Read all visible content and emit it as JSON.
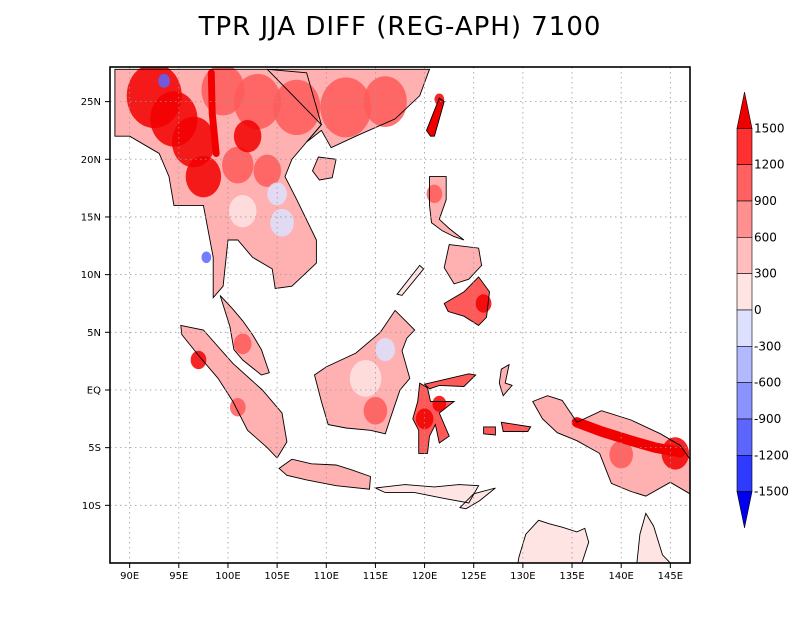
{
  "title": "TPR JJA DIFF (REG-APH) 7100",
  "map": {
    "lon_range": [
      88,
      147
    ],
    "lat_range": [
      -15,
      28
    ],
    "x_ticks": [
      {
        "value": 90,
        "label": "90E"
      },
      {
        "value": 95,
        "label": "95E"
      },
      {
        "value": 100,
        "label": "100E"
      },
      {
        "value": 105,
        "label": "105E"
      },
      {
        "value": 110,
        "label": "110E"
      },
      {
        "value": 115,
        "label": "115E"
      },
      {
        "value": 120,
        "label": "120E"
      },
      {
        "value": 125,
        "label": "125E"
      },
      {
        "value": 130,
        "label": "130E"
      },
      {
        "value": 135,
        "label": "135E"
      },
      {
        "value": 140,
        "label": "140E"
      },
      {
        "value": 145,
        "label": "145E"
      }
    ],
    "y_ticks": [
      {
        "value": 25,
        "label": "25N"
      },
      {
        "value": 20,
        "label": "20N"
      },
      {
        "value": 15,
        "label": "15N"
      },
      {
        "value": 10,
        "label": "10N"
      },
      {
        "value": 5,
        "label": "5N"
      },
      {
        "value": 0,
        "label": "EQ"
      },
      {
        "value": -5,
        "label": "5S"
      },
      {
        "value": -10,
        "label": "10S"
      }
    ],
    "grid": "dotted"
  },
  "colorbar": {
    "levels": [
      "1500",
      "1200",
      "900",
      "600",
      "300",
      "0",
      "-300",
      "-600",
      "-900",
      "-1200",
      "-1500"
    ],
    "colors": [
      "#ee0000",
      "#ff3030",
      "#ff6060",
      "#ff9090",
      "#ffbdbd",
      "#ffe4e4",
      "#dde1ff",
      "#b3b9ff",
      "#8b93ff",
      "#5c66ff",
      "#2f3aff",
      "#0000ee"
    ]
  },
  "land_colors": {
    "strong_pos": "#f20000",
    "pos": "#ff5a5a",
    "light_pos": "#ffb0b0",
    "faint_pos": "#ffe4e4",
    "neg": "#dde1ff",
    "strong_neg": "#5c66ff"
  },
  "regions": [
    {
      "name": "indochina-mainland",
      "fill": "light_pos",
      "pts": [
        [
          88.5,
          27.8
        ],
        [
          99,
          27.8
        ],
        [
          104,
          27.8
        ],
        [
          108,
          27.5
        ],
        [
          109.5,
          23
        ],
        [
          108,
          21.5
        ],
        [
          106.5,
          20
        ],
        [
          105.8,
          18.5
        ],
        [
          107,
          16.5
        ],
        [
          109,
          13
        ],
        [
          109,
          11
        ],
        [
          106.5,
          9
        ],
        [
          104.8,
          8.8
        ],
        [
          104.5,
          10.5
        ],
        [
          102.5,
          11.5
        ],
        [
          101,
          13
        ],
        [
          100,
          13
        ],
        [
          99.5,
          9
        ],
        [
          98.5,
          8
        ],
        [
          98.5,
          11.5
        ],
        [
          97.5,
          16
        ],
        [
          94.5,
          16
        ],
        [
          94,
          18.5
        ],
        [
          93,
          20.5
        ],
        [
          92,
          21
        ],
        [
          90,
          22
        ],
        [
          88.5,
          22
        ]
      ]
    },
    {
      "name": "south-china",
      "fill": "light_pos",
      "pts": [
        [
          104,
          27.8
        ],
        [
          120.5,
          27.8
        ],
        [
          119.5,
          25.5
        ],
        [
          117,
          23.5
        ],
        [
          113,
          22
        ],
        [
          110.5,
          21
        ],
        [
          109.5,
          22.5
        ],
        [
          108,
          21.5
        ],
        [
          109.5,
          23
        ]
      ]
    },
    {
      "name": "malay-peninsula",
      "fill": "light_pos",
      "pts": [
        [
          99.2,
          8.2
        ],
        [
          100.5,
          7
        ],
        [
          101.5,
          6
        ],
        [
          102.5,
          4.8
        ],
        [
          103.4,
          3.5
        ],
        [
          104.2,
          1.5
        ],
        [
          103.4,
          1.3
        ],
        [
          101.5,
          2.6
        ],
        [
          100.6,
          3.5
        ],
        [
          100.2,
          5.5
        ]
      ]
    },
    {
      "name": "sumatra",
      "fill": "light_pos",
      "pts": [
        [
          95.2,
          5.6
        ],
        [
          97.5,
          5.2
        ],
        [
          100.5,
          2.3
        ],
        [
          103.5,
          0
        ],
        [
          105.5,
          -2
        ],
        [
          106,
          -4.5
        ],
        [
          105,
          -5.9
        ],
        [
          104,
          -5
        ],
        [
          102,
          -3.5
        ],
        [
          100.5,
          -1
        ],
        [
          99,
          1
        ],
        [
          97,
          3
        ],
        [
          95.3,
          4.8
        ]
      ]
    },
    {
      "name": "borneo",
      "fill": "light_pos",
      "pts": [
        [
          109.5,
          -1
        ],
        [
          108.8,
          1.3
        ],
        [
          110,
          2
        ],
        [
          113,
          3.2
        ],
        [
          115.5,
          5
        ],
        [
          117,
          6.9
        ],
        [
          119,
          5.2
        ],
        [
          118.2,
          4.5
        ],
        [
          117.7,
          3.4
        ],
        [
          118.5,
          1
        ],
        [
          117.5,
          0
        ],
        [
          116.5,
          -2.5
        ],
        [
          116,
          -3.8
        ],
        [
          114.5,
          -3.5
        ],
        [
          112,
          -3.3
        ],
        [
          110.2,
          -3
        ]
      ]
    },
    {
      "name": "java",
      "fill": "light_pos",
      "pts": [
        [
          105.2,
          -6.8
        ],
        [
          106.5,
          -6
        ],
        [
          108.5,
          -6.4
        ],
        [
          111,
          -6.5
        ],
        [
          112.5,
          -6.9
        ],
        [
          114.5,
          -7.5
        ],
        [
          114.4,
          -8.6
        ],
        [
          111,
          -8.3
        ],
        [
          108,
          -7.8
        ],
        [
          106,
          -7.4
        ]
      ]
    },
    {
      "name": "lesser-sunda",
      "fill": "faint_pos",
      "pts": [
        [
          115,
          -8.5
        ],
        [
          118,
          -8.2
        ],
        [
          121,
          -8.4
        ],
        [
          123.5,
          -8.2
        ],
        [
          125.5,
          -8.3
        ],
        [
          124.5,
          -9.8
        ],
        [
          122,
          -9.4
        ],
        [
          119,
          -8.9
        ],
        [
          116,
          -8.9
        ]
      ]
    },
    {
      "name": "timor",
      "fill": "faint_pos",
      "pts": [
        [
          123.6,
          -10.2
        ],
        [
          125,
          -9
        ],
        [
          127.2,
          -8.5
        ],
        [
          125.6,
          -9.6
        ],
        [
          124.2,
          -10.3
        ]
      ]
    },
    {
      "name": "sulawesi-north",
      "fill": "pos",
      "pts": [
        [
          120,
          0.5
        ],
        [
          122.5,
          1
        ],
        [
          124.5,
          1.4
        ],
        [
          125.2,
          1.3
        ],
        [
          124,
          0.3
        ],
        [
          121.5,
          0.4
        ],
        [
          120.5,
          0.1
        ]
      ]
    },
    {
      "name": "sulawesi-body",
      "fill": "pos",
      "pts": [
        [
          119.5,
          0.6
        ],
        [
          120.3,
          0.2
        ],
        [
          120.6,
          -1
        ],
        [
          121.8,
          -1
        ],
        [
          123,
          -1
        ],
        [
          121.5,
          -2
        ],
        [
          122.5,
          -4
        ],
        [
          121.5,
          -4.6
        ],
        [
          121.1,
          -3
        ],
        [
          120.5,
          -4
        ],
        [
          120.3,
          -5.5
        ],
        [
          119.4,
          -5.5
        ],
        [
          119.4,
          -3.5
        ],
        [
          118.8,
          -2.5
        ],
        [
          119.3,
          -1
        ]
      ]
    },
    {
      "name": "luzon",
      "fill": "light_pos",
      "pts": [
        [
          120.5,
          18.5
        ],
        [
          122.2,
          18.5
        ],
        [
          122.2,
          16.5
        ],
        [
          121.5,
          14.8
        ],
        [
          122.5,
          14
        ],
        [
          124,
          13
        ],
        [
          123,
          13.3
        ],
        [
          121.8,
          13.8
        ],
        [
          120.7,
          14.5
        ],
        [
          120.5,
          16
        ]
      ]
    },
    {
      "name": "visayas",
      "fill": "light_pos",
      "pts": [
        [
          122.5,
          12.6
        ],
        [
          125.5,
          12.3
        ],
        [
          125.8,
          10.8
        ],
        [
          124.5,
          9.6
        ],
        [
          123,
          9.2
        ],
        [
          122,
          10.6
        ]
      ]
    },
    {
      "name": "mindanao",
      "fill": "pos",
      "pts": [
        [
          122,
          7.5
        ],
        [
          124,
          8.5
        ],
        [
          125.5,
          9.8
        ],
        [
          126.6,
          8.5
        ],
        [
          126.3,
          6.3
        ],
        [
          125.5,
          5.6
        ],
        [
          124,
          6.4
        ],
        [
          122.4,
          6.8
        ]
      ]
    },
    {
      "name": "palawan",
      "fill": "faint_pos",
      "pts": [
        [
          117.2,
          8.3
        ],
        [
          119.5,
          10.8
        ],
        [
          119.9,
          10.5
        ],
        [
          117.7,
          8.2
        ]
      ]
    },
    {
      "name": "hainan",
      "fill": "light_pos",
      "pts": [
        [
          108.6,
          19
        ],
        [
          109.2,
          20.2
        ],
        [
          111,
          20
        ],
        [
          110.6,
          18.4
        ],
        [
          109.3,
          18.2
        ]
      ]
    },
    {
      "name": "taiwan",
      "fill": "strong_pos",
      "pts": [
        [
          120.2,
          22.5
        ],
        [
          121.5,
          25.3
        ],
        [
          122,
          25
        ],
        [
          121,
          22
        ],
        [
          120.6,
          22
        ]
      ]
    },
    {
      "name": "halmahera",
      "fill": "light_pos",
      "pts": [
        [
          127.8,
          1.8
        ],
        [
          128.6,
          2.2
        ],
        [
          128.2,
          0.6
        ],
        [
          128.9,
          0.4
        ],
        [
          128,
          -0.5
        ],
        [
          127.6,
          0.6
        ]
      ]
    },
    {
      "name": "seram",
      "fill": "pos",
      "pts": [
        [
          127.8,
          -2.8
        ],
        [
          130.8,
          -3.2
        ],
        [
          130.5,
          -3.6
        ],
        [
          128,
          -3.6
        ]
      ]
    },
    {
      "name": "buru",
      "fill": "pos",
      "pts": [
        [
          126,
          -3.2
        ],
        [
          127.2,
          -3.2
        ],
        [
          127.2,
          -3.9
        ],
        [
          126,
          -3.8
        ]
      ]
    },
    {
      "name": "new-guinea",
      "fill": "light_pos",
      "pts": [
        [
          131,
          -1
        ],
        [
          132.5,
          -0.5
        ],
        [
          134,
          -0.9
        ],
        [
          135.5,
          -2.8
        ],
        [
          138,
          -1.8
        ],
        [
          141,
          -2.6
        ],
        [
          144,
          -3.8
        ],
        [
          146,
          -4.8
        ],
        [
          147,
          -6
        ],
        [
          147,
          -9
        ],
        [
          145,
          -8
        ],
        [
          142.5,
          -9.2
        ],
        [
          141,
          -8.8
        ],
        [
          139,
          -8.1
        ],
        [
          137.8,
          -5.5
        ],
        [
          135.5,
          -4.4
        ],
        [
          133.5,
          -3.7
        ],
        [
          132,
          -2.5
        ]
      ]
    },
    {
      "name": "australia-north",
      "fill": "faint_pos",
      "pts": [
        [
          129.5,
          -15
        ],
        [
          129.6,
          -14.5
        ],
        [
          130.3,
          -12.5
        ],
        [
          131.6,
          -11.3
        ],
        [
          132.7,
          -11.6
        ],
        [
          134,
          -11.9
        ],
        [
          135.5,
          -12.3
        ],
        [
          136.3,
          -12
        ],
        [
          136.7,
          -13.2
        ],
        [
          136,
          -15
        ]
      ]
    },
    {
      "name": "cape-york",
      "fill": "faint_pos",
      "pts": [
        [
          141.6,
          -15
        ],
        [
          141.9,
          -12.5
        ],
        [
          142.5,
          -10.7
        ],
        [
          143.3,
          -11.8
        ],
        [
          144.2,
          -14.3
        ],
        [
          145,
          -15
        ]
      ]
    }
  ],
  "hotspots": [
    {
      "lon": 92.5,
      "lat": 25.5,
      "r": 2.8,
      "fill": "strong_pos"
    },
    {
      "lon": 94.5,
      "lat": 23.5,
      "r": 2.4,
      "fill": "strong_pos"
    },
    {
      "lon": 96.5,
      "lat": 21.5,
      "r": 2.2,
      "fill": "strong_pos"
    },
    {
      "lon": 97.5,
      "lat": 18.5,
      "r": 1.8,
      "fill": "strong_pos"
    },
    {
      "lon": 99.5,
      "lat": 26,
      "r": 2.2,
      "fill": "pos"
    },
    {
      "lon": 103,
      "lat": 25,
      "r": 2.4,
      "fill": "pos"
    },
    {
      "lon": 107,
      "lat": 24.5,
      "r": 2.4,
      "fill": "pos"
    },
    {
      "lon": 112,
      "lat": 24.5,
      "r": 2.6,
      "fill": "pos"
    },
    {
      "lon": 116,
      "lat": 25,
      "r": 2.2,
      "fill": "pos"
    },
    {
      "lon": 101,
      "lat": 19.5,
      "r": 1.6,
      "fill": "pos"
    },
    {
      "lon": 104,
      "lat": 19,
      "r": 1.4,
      "fill": "pos"
    },
    {
      "lon": 102,
      "lat": 22,
      "r": 1.4,
      "fill": "strong_pos"
    },
    {
      "lon": 101.5,
      "lat": 15.5,
      "r": 1.4,
      "fill": "faint_pos"
    },
    {
      "lon": 105.5,
      "lat": 14.5,
      "r": 1.2,
      "fill": "neg"
    },
    {
      "lon": 105,
      "lat": 17,
      "r": 1.0,
      "fill": "neg"
    },
    {
      "lon": 93.5,
      "lat": 26.8,
      "r": 0.6,
      "fill": "strong_neg"
    },
    {
      "lon": 97.8,
      "lat": 11.5,
      "r": 0.5,
      "fill": "strong_neg"
    },
    {
      "lon": 101.5,
      "lat": 4,
      "r": 0.9,
      "fill": "pos"
    },
    {
      "lon": 97,
      "lat": 2.6,
      "r": 0.8,
      "fill": "strong_pos"
    },
    {
      "lon": 101,
      "lat": -1.5,
      "r": 0.8,
      "fill": "pos"
    },
    {
      "lon": 114,
      "lat": 1,
      "r": 1.6,
      "fill": "faint_pos"
    },
    {
      "lon": 115,
      "lat": -1.8,
      "r": 1.2,
      "fill": "pos"
    },
    {
      "lon": 116,
      "lat": 3.5,
      "r": 1.0,
      "fill": "neg"
    },
    {
      "lon": 120,
      "lat": -2.5,
      "r": 0.9,
      "fill": "strong_pos"
    },
    {
      "lon": 121.5,
      "lat": -1.2,
      "r": 0.7,
      "fill": "strong_pos"
    },
    {
      "lon": 126,
      "lat": 7.5,
      "r": 0.8,
      "fill": "strong_pos"
    },
    {
      "lon": 121.5,
      "lat": 25.2,
      "r": 0.5,
      "fill": "strong_pos"
    },
    {
      "lon": 140,
      "lat": -5.6,
      "r": 1.2,
      "fill": "pos"
    },
    {
      "lon": 145.5,
      "lat": -5.5,
      "r": 1.4,
      "fill": "strong_pos"
    },
    {
      "lon": 121,
      "lat": 17,
      "r": 0.8,
      "fill": "pos"
    }
  ],
  "bands": [
    {
      "fill": "strong_pos",
      "width": 0.9,
      "pts": [
        [
          135.5,
          -2.8
        ],
        [
          138,
          -3.6
        ],
        [
          141,
          -4.4
        ],
        [
          143.5,
          -5
        ],
        [
          146,
          -5.4
        ]
      ]
    },
    {
      "fill": "strong_pos",
      "width": 0.6,
      "pts": [
        [
          98.3,
          27.5
        ],
        [
          98.4,
          24
        ],
        [
          98.8,
          20.5
        ]
      ]
    }
  ]
}
